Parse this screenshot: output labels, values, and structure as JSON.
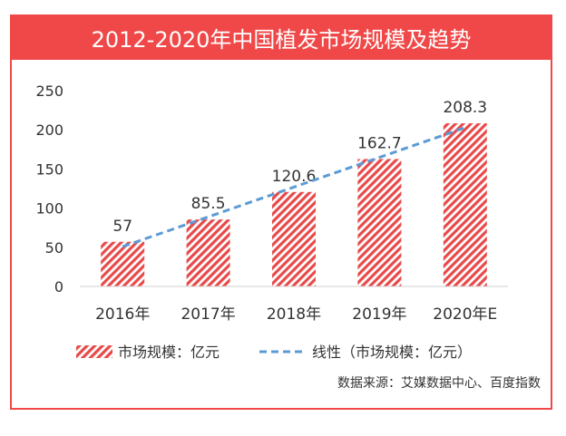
{
  "chart_data": {
    "type": "bar",
    "title": "2012-2020年中国植发市场规模及趋势",
    "categories": [
      "2016年",
      "2017年",
      "2018年",
      "2019年",
      "2020年E"
    ],
    "series": [
      {
        "name": "市场规模：亿元",
        "type": "bar",
        "values": [
          57,
          85.5,
          120.6,
          162.7,
          208.3
        ]
      },
      {
        "name": "线性（市场规模：亿元）",
        "type": "line",
        "style": "dashed"
      }
    ],
    "data_labels": [
      "57",
      "85.5",
      "120.6",
      "162.7",
      "208.3"
    ],
    "ylim": [
      0,
      250
    ],
    "yticks": [
      0,
      50,
      100,
      150,
      200,
      250
    ],
    "legend_position": "bottom",
    "grid": false,
    "colors": {
      "bar": "#e84a4a",
      "trend": "#5b9bd5",
      "title_bg": "#f04848"
    }
  },
  "source": "数据来源：艾媒数据中心、百度指数"
}
